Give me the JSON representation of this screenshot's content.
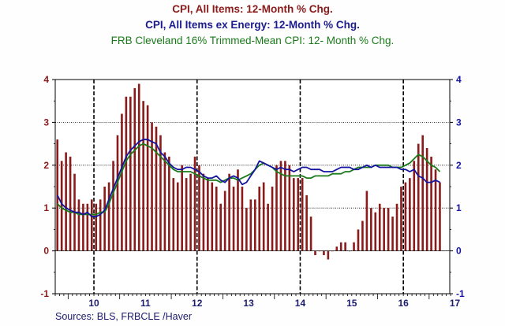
{
  "chart_data": {
    "type": "bar",
    "title": "CPI, All Items: 12-Month % Chg.",
    "subtitle_lines": [
      "CPI, All Items ex Energy: 12-Month % Chg.",
      "FRB Cleveland 16% Trimmed-Mean CPI: 12- Month % Chg."
    ],
    "source": "Sources:  BLS, FRBCLE /Haver",
    "x_start_year": 2009.75,
    "x_end_year": 2017.4,
    "ylim": [
      -1,
      4
    ],
    "yticks": [
      -1,
      0,
      1,
      2,
      3,
      4
    ],
    "ytick_labels_left": [
      "-1",
      "0",
      "1",
      "2",
      "3",
      "4"
    ],
    "ytick_labels_right": [
      "-1",
      "0",
      "1",
      "2",
      "3",
      "4"
    ],
    "year_ticks": [
      {
        "year": 2010,
        "label": "10"
      },
      {
        "year": 2011,
        "label": "11"
      },
      {
        "year": 2012,
        "label": "12"
      },
      {
        "year": 2013,
        "label": "13"
      },
      {
        "year": 2014,
        "label": "14"
      },
      {
        "year": 2015,
        "label": "15"
      },
      {
        "year": 2016,
        "label": "16"
      },
      {
        "year": 2017,
        "label": "17"
      }
    ],
    "recession_lines_year": [
      2010.5,
      2012.5,
      2014.5,
      2016.5
    ],
    "grid": true,
    "series": [
      {
        "name": "CPI, All Items: 12-Month % Chg.",
        "kind": "bar",
        "color": "#8b1a1a",
        "start_year": 2009.75,
        "values": [
          2.6,
          2.1,
          2.3,
          2.2,
          1.8,
          1.2,
          1.1,
          1.1,
          1.2,
          1.1,
          1.2,
          1.5,
          1.6,
          2.1,
          2.7,
          3.2,
          3.6,
          3.6,
          3.8,
          3.9,
          3.5,
          3.4,
          3.0,
          2.9,
          2.7,
          2.3,
          2.2,
          1.7,
          1.6,
          2.0,
          1.7,
          1.8,
          2.2,
          2.0,
          1.8,
          1.7,
          1.6,
          1.5,
          1.1,
          1.4,
          1.8,
          1.5,
          1.9,
          1.5,
          1.0,
          1.2,
          1.2,
          1.5,
          1.6,
          1.1,
          1.5,
          2.0,
          2.1,
          2.1,
          2.0,
          1.7,
          1.7,
          1.7,
          1.3,
          0.8,
          -0.1,
          0.0,
          -0.1,
          -0.2,
          0.0,
          0.1,
          0.2,
          0.2,
          0.0,
          0.2,
          0.5,
          0.7,
          1.4,
          1.0,
          0.9,
          1.1,
          1.0,
          1.0,
          0.8,
          1.1,
          1.5,
          1.6,
          1.7,
          2.1,
          2.5,
          2.7,
          2.4,
          2.2,
          1.9,
          1.6
        ],
        "note": "monthly values from Oct 2009 to Mar 2017"
      },
      {
        "name": "CPI, All Items ex Energy: 12-Month % Chg.",
        "kind": "line",
        "color": "#1414a0",
        "start_year": 2009.75,
        "values": [
          1.3,
          1.1,
          1.0,
          0.95,
          0.9,
          0.9,
          0.85,
          0.9,
          0.8,
          0.8,
          0.85,
          0.95,
          1.2,
          1.45,
          1.7,
          1.95,
          2.2,
          2.35,
          2.45,
          2.55,
          2.6,
          2.6,
          2.55,
          2.5,
          2.3,
          2.2,
          2.05,
          1.95,
          1.9,
          1.9,
          1.95,
          1.95,
          1.9,
          1.85,
          1.75,
          1.7,
          1.7,
          1.75,
          1.65,
          1.6,
          1.7,
          1.75,
          1.7,
          1.55,
          1.6,
          1.75,
          1.9,
          2.1,
          2.05,
          2.0,
          1.95,
          1.9,
          1.95,
          1.9,
          1.9,
          1.85,
          1.9,
          1.95,
          1.95,
          1.9,
          1.9,
          1.9,
          1.85,
          1.85,
          1.85,
          1.9,
          1.95,
          1.95,
          1.95,
          1.9,
          1.9,
          1.95,
          2.0,
          1.95,
          2.0,
          1.95,
          1.95,
          1.95,
          1.95,
          1.95,
          1.9,
          1.9,
          1.85,
          1.9,
          1.75,
          1.7,
          1.6,
          1.6,
          1.65,
          1.6
        ]
      },
      {
        "name": "FRB Cleveland 16% Trimmed-Mean CPI: 12- Month % Chg.",
        "kind": "line",
        "color": "#1a7a1a",
        "start_year": 2009.75,
        "values": [
          1.1,
          1.0,
          0.95,
          0.9,
          0.9,
          0.85,
          0.85,
          0.85,
          0.85,
          0.85,
          0.9,
          0.9,
          1.1,
          1.35,
          1.6,
          1.85,
          2.1,
          2.25,
          2.35,
          2.45,
          2.5,
          2.45,
          2.4,
          2.3,
          2.2,
          2.1,
          2.0,
          1.9,
          1.85,
          1.85,
          1.85,
          1.85,
          1.8,
          1.75,
          1.7,
          1.65,
          1.65,
          1.65,
          1.6,
          1.65,
          1.7,
          1.7,
          1.65,
          1.7,
          1.75,
          1.8,
          1.9,
          2.0,
          2.05,
          2.0,
          1.95,
          1.85,
          1.8,
          1.75,
          1.75,
          1.75,
          1.75,
          1.75,
          1.7,
          1.7,
          1.75,
          1.75,
          1.75,
          1.75,
          1.8,
          1.8,
          1.8,
          1.85,
          1.85,
          1.9,
          1.95,
          1.95,
          1.95,
          1.95,
          2.0,
          2.0,
          2.0,
          2.0,
          1.95,
          1.95,
          1.95,
          2.0,
          2.05,
          2.15,
          2.25,
          2.2,
          2.1,
          2.0,
          1.95,
          1.85
        ]
      }
    ]
  }
}
